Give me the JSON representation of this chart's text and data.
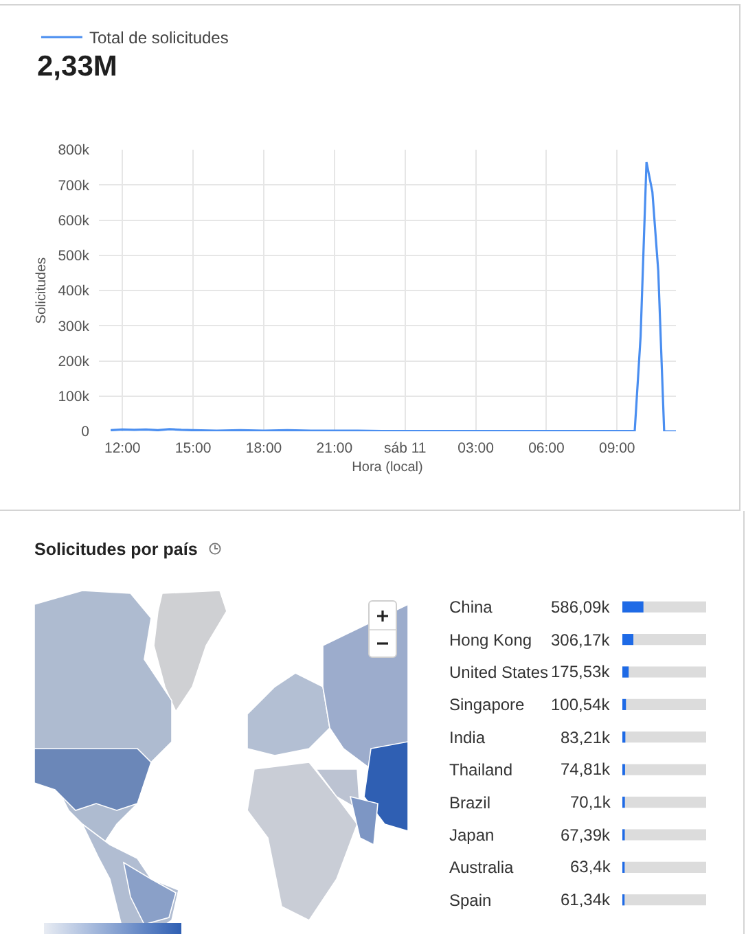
{
  "chart_data": [
    {
      "type": "line",
      "x": [
        "--11-10T11:30",
        "--11-10T12:00",
        "--11-10T12:30",
        "--11-10T13:00",
        "--11-10T13:30",
        "--11-10T14:00",
        "--11-10T14:30",
        "--11-10T15:00",
        "--11-10T16:00",
        "--11-10T17:00",
        "--11-10T18:00",
        "--11-10T19:00",
        "--11-10T20:00",
        "--11-10T21:00",
        "--11-10T22:00",
        "--11-10T23:00",
        "--11-11T00:00",
        "--11-11T01:00",
        "--11-11T02:00",
        "--11-11T03:00",
        "--11-11T04:00",
        "--11-11T05:00",
        "--11-11T06:00",
        "--11-11T07:00",
        "--11-11T08:00",
        "--11-11T09:00",
        "--11-11T09:30",
        "--11-11T09:45",
        "--11-11T10:00",
        "--11-11T10:15",
        "--11-11T10:30",
        "--11-11T10:45",
        "--11-11T11:00",
        "--11-11T11:15",
        "--11-11T11:30"
      ],
      "series": [
        {
          "name": "Total de solicitudes",
          "color": "#4a8ef0",
          "values": [
            3000,
            5000,
            4000,
            5000,
            3000,
            6000,
            4000,
            3000,
            2000,
            3000,
            2000,
            3000,
            2000,
            2000,
            2000,
            1000,
            1000,
            1000,
            1000,
            1000,
            1000,
            1000,
            1000,
            1000,
            1000,
            1000,
            1000,
            1000,
            270000,
            765000,
            680000,
            455000,
            0,
            0,
            0
          ]
        }
      ],
      "annotations": [
        "2,33M"
      ],
      "xlabel": "Hora (local)",
      "ylabel": "Solicitudes",
      "xlim": [
        "--11-10T11:00",
        "--11-11T11:30"
      ],
      "xticks": [
        {
          "value": "--11-10T12:00",
          "label": "12:00"
        },
        {
          "value": "--11-10T15:00",
          "label": "15:00"
        },
        {
          "value": "--11-10T18:00",
          "label": "18:00"
        },
        {
          "value": "--11-10T21:00",
          "label": "21:00"
        },
        {
          "value": "--11-11T00:00",
          "label": "sáb 11"
        },
        {
          "value": "--11-11T03:00",
          "label": "03:00"
        },
        {
          "value": "--11-11T06:00",
          "label": "06:00"
        },
        {
          "value": "--11-11T09:00",
          "label": "09:00"
        }
      ],
      "ylim": [
        0,
        800000
      ],
      "yticks": [
        0,
        {
          "value": 100000,
          "label": "100k"
        },
        {
          "value": 200000,
          "label": "200k"
        },
        {
          "value": 300000,
          "label": "300k"
        },
        {
          "value": 400000,
          "label": "400k"
        },
        {
          "value": 500000,
          "label": "500k"
        },
        {
          "value": 600000,
          "label": "600k"
        },
        {
          "value": 700000,
          "label": "700k"
        },
        {
          "value": 800000,
          "label": "800k"
        }
      ],
      "grid": true,
      "legend": "top left"
    },
    {
      "type": "other",
      "title": "Solicitudes por país"
    },
    {
      "type": "bar",
      "orientation": "horizontal",
      "categories": [
        "China",
        "Hong Kong",
        "United States",
        "Singapore",
        "India",
        "Thailand",
        "Brazil",
        "Japan",
        "Australia",
        "Spain"
      ],
      "values": [
        586090,
        306170,
        175530,
        100540,
        83210,
        74810,
        70100,
        67390,
        63400,
        61340
      ],
      "value_labels": [
        "586,09k",
        "306,17k",
        "175,53k",
        "100,54k",
        "83,21k",
        "74,81k",
        "70,1k",
        "67,39k",
        "63,4k",
        "61,34k"
      ],
      "color": "#1e6ae6",
      "xlim": [
        0,
        2330000
      ],
      "tick_labels": "y"
    }
  ]
}
